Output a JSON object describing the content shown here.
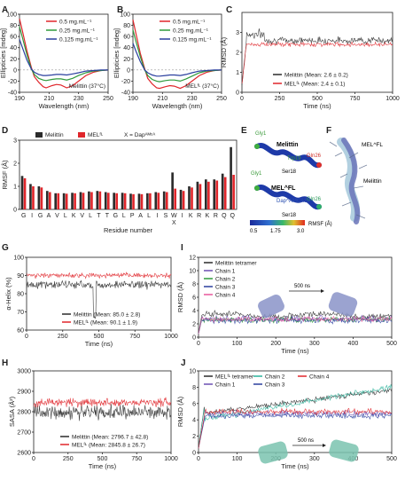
{
  "panels": {
    "A": "A",
    "B": "B",
    "C": "C",
    "D": "D",
    "E": "E",
    "F": "F",
    "G": "G",
    "H": "H",
    "I": "I",
    "J": "J"
  },
  "colors": {
    "black": "#2b2b2b",
    "red": "#e0262b",
    "green": "#2f9a3c",
    "blue": "#2a3f9e",
    "pink": "#e8579b",
    "teal": "#2bb39a",
    "purple": "#6a4fb3",
    "gray": "#8a8a8a"
  },
  "chart_data": [
    {
      "id": "A",
      "type": "line",
      "xlabel": "Wavelength (nm)",
      "ylabel": "Ellipticies [mdeg]",
      "xlim": [
        190,
        250
      ],
      "ylim": [
        -40,
        100
      ],
      "xticks": [
        "190",
        "210",
        "230",
        "250"
      ],
      "yticks": [
        "-40",
        "-20",
        "0",
        "20",
        "40",
        "60",
        "80",
        "100"
      ],
      "annotation": "Melittin (37°C)",
      "series": [
        {
          "name": "0.5 mg.mL⁻¹",
          "color": "#e0262b",
          "x": [
            190,
            192,
            195,
            198,
            200,
            203,
            206,
            208,
            212,
            215,
            218,
            222,
            226,
            230,
            235,
            240,
            245,
            250
          ],
          "y": [
            92,
            70,
            35,
            5,
            -12,
            -22,
            -30,
            -32,
            -28,
            -26,
            -27,
            -32,
            -28,
            -20,
            -10,
            -4,
            -1,
            0
          ]
        },
        {
          "name": "0.25 mg.mL⁻¹",
          "color": "#2f9a3c",
          "x": [
            190,
            192,
            195,
            198,
            200,
            203,
            206,
            208,
            212,
            215,
            218,
            222,
            226,
            230,
            235,
            240,
            245,
            250
          ],
          "y": [
            78,
            58,
            28,
            2,
            -8,
            -15,
            -18,
            -19,
            -17,
            -16,
            -16,
            -18,
            -15,
            -10,
            -5,
            -2,
            -1,
            0
          ]
        },
        {
          "name": "0.125 mg.mL⁻¹",
          "color": "#2a3f9e",
          "x": [
            190,
            192,
            195,
            198,
            200,
            203,
            206,
            208,
            212,
            215,
            218,
            222,
            226,
            230,
            235,
            240,
            245,
            250
          ],
          "y": [
            55,
            40,
            18,
            2,
            -4,
            -8,
            -10,
            -10,
            -9,
            -8,
            -8,
            -9,
            -7,
            -5,
            -2,
            -1,
            0,
            0
          ]
        }
      ]
    },
    {
      "id": "B",
      "type": "line",
      "xlabel": "Wavelength (nm)",
      "ylabel": "Ellipticies [mdeg]",
      "xlim": [
        190,
        250
      ],
      "ylim": [
        -40,
        100
      ],
      "xticks": [
        "190",
        "210",
        "230",
        "250"
      ],
      "yticks": [
        "-40",
        "-20",
        "0",
        "20",
        "40",
        "60",
        "80",
        "100"
      ],
      "annotation": "MEL^FL (37°C)",
      "series": [
        {
          "name": "0.5 mg.mL⁻¹",
          "color": "#e0262b",
          "x": [
            190,
            192,
            195,
            198,
            200,
            203,
            206,
            208,
            212,
            215,
            218,
            222,
            226,
            230,
            235,
            240,
            245,
            250
          ],
          "y": [
            90,
            66,
            30,
            2,
            -15,
            -25,
            -32,
            -33,
            -30,
            -28,
            -29,
            -33,
            -28,
            -20,
            -10,
            -4,
            -1,
            0
          ]
        },
        {
          "name": "0.25 mg.mL⁻¹",
          "color": "#2f9a3c",
          "x": [
            190,
            192,
            195,
            198,
            200,
            203,
            206,
            208,
            212,
            215,
            218,
            222,
            226,
            230,
            235,
            240,
            245,
            250
          ],
          "y": [
            72,
            52,
            24,
            0,
            -10,
            -17,
            -20,
            -21,
            -19,
            -18,
            -18,
            -20,
            -16,
            -11,
            -5,
            -2,
            -1,
            0
          ]
        },
        {
          "name": "0.125 mg.mL⁻¹",
          "color": "#2a3f9e",
          "x": [
            190,
            192,
            195,
            198,
            200,
            203,
            206,
            208,
            212,
            215,
            218,
            222,
            226,
            230,
            235,
            240,
            245,
            250
          ],
          "y": [
            48,
            34,
            15,
            0,
            -5,
            -9,
            -11,
            -11,
            -10,
            -9,
            -9,
            -10,
            -8,
            -5,
            -2,
            -1,
            0,
            0
          ]
        }
      ]
    },
    {
      "id": "C",
      "type": "line",
      "xlabel": "Time (ns)",
      "ylabel": "RMSD (Å)",
      "xlim": [
        0,
        1000
      ],
      "ylim": [
        0,
        4
      ],
      "xticks": [
        "0",
        "250",
        "500",
        "750",
        "1000"
      ],
      "yticks": [
        "0",
        "1",
        "2",
        "3"
      ],
      "series": [
        {
          "name": "Melittin (Mean: 2.6 ± 0.2)",
          "color": "#2b2b2b",
          "mean": 2.6
        },
        {
          "name": "MEL^FL (Mean: 2.4 ± 0.1)",
          "color": "#e0262b",
          "mean": 2.4
        }
      ]
    },
    {
      "id": "D",
      "type": "bar",
      "xlabel": "Residue number",
      "ylabel": "RMSF (Å)",
      "ylim": [
        0,
        3
      ],
      "yticks": [
        "0",
        "1",
        "2",
        "3"
      ],
      "categories": [
        "G",
        "I",
        "G",
        "A",
        "V",
        "L",
        "K",
        "V",
        "L",
        "T",
        "T",
        "G",
        "L",
        "P",
        "A",
        "L",
        "I",
        "S",
        "W",
        "I",
        "K",
        "R",
        "K",
        "R",
        "Q",
        "Q"
      ],
      "marked_index": 18,
      "marked_label": "X",
      "legend_extra": "X = Dap^AMCA",
      "series": [
        {
          "name": "Melittin",
          "color": "#2b2b2b",
          "values": [
            1.45,
            1.1,
            1.0,
            0.8,
            0.7,
            0.7,
            0.72,
            0.75,
            0.78,
            0.8,
            0.75,
            0.72,
            0.72,
            0.68,
            0.68,
            0.7,
            0.75,
            0.78,
            1.6,
            0.85,
            1.0,
            1.2,
            1.3,
            1.3,
            1.55,
            2.7
          ]
        },
        {
          "name": "MEL^FL",
          "color": "#e0262b",
          "values": [
            1.35,
            1.0,
            0.95,
            0.75,
            0.7,
            0.68,
            0.7,
            0.72,
            0.75,
            0.78,
            0.72,
            0.7,
            0.7,
            0.66,
            0.66,
            0.7,
            0.72,
            0.75,
            0.9,
            0.8,
            0.95,
            1.1,
            1.2,
            1.25,
            1.4,
            1.5
          ]
        }
      ]
    },
    {
      "id": "G",
      "type": "line",
      "xlabel": "Time (ns)",
      "ylabel": "α-Helix (%)",
      "xlim": [
        0,
        1000
      ],
      "ylim": [
        60,
        100
      ],
      "xticks": [
        "0",
        "250",
        "500",
        "750",
        "1000"
      ],
      "yticks": [
        "60",
        "70",
        "80",
        "90",
        "100"
      ],
      "series": [
        {
          "name": "Melittin (Mean: 85.0 ± 2.8)",
          "color": "#2b2b2b",
          "mean": 85.0
        },
        {
          "name": "MEL^FL (Mean: 90.1 ± 1.9)",
          "color": "#e0262b",
          "mean": 90.1
        }
      ]
    },
    {
      "id": "H",
      "type": "line",
      "xlabel": "Time (ns)",
      "ylabel": "SASA (Å²)",
      "xlim": [
        0,
        1000
      ],
      "ylim": [
        2600,
        3000
      ],
      "xticks": [
        "0",
        "250",
        "500",
        "750",
        "1000"
      ],
      "yticks": [
        "2600",
        "2700",
        "2800",
        "2900",
        "3000"
      ],
      "series": [
        {
          "name": "Melittin (Mean: 2796.7 ± 42.8)",
          "color": "#2b2b2b",
          "mean": 2796.7
        },
        {
          "name": "MEL^FL (Mean: 2845.8 ± 26.7)",
          "color": "#e0262b",
          "mean": 2845.8
        }
      ]
    },
    {
      "id": "I",
      "type": "line",
      "xlabel": "Time (ns)",
      "ylabel": "RMSD (Å)",
      "xlim": [
        0,
        500
      ],
      "ylim": [
        0,
        12
      ],
      "xticks": [
        "0",
        "100",
        "200",
        "300",
        "400",
        "500"
      ],
      "yticks": [
        "0",
        "2",
        "4",
        "6",
        "8",
        "10",
        "12"
      ],
      "annotation": "500 ns",
      "series": [
        {
          "name": "Melittin tetramer",
          "color": "#2b2b2b",
          "mean": 3.3
        },
        {
          "name": "Chain 1",
          "color": "#6a4fb3",
          "mean": 2.8
        },
        {
          "name": "Chain 2",
          "color": "#2f9a3c",
          "mean": 2.6
        },
        {
          "name": "Chain 3",
          "color": "#2a3f9e",
          "mean": 2.5
        },
        {
          "name": "Chain 4",
          "color": "#e8579b",
          "mean": 2.7
        }
      ]
    },
    {
      "id": "J",
      "type": "line",
      "xlabel": "Time (ns)",
      "ylabel": "RMSD (Å)",
      "xlim": [
        0,
        500
      ],
      "ylim": [
        0,
        10
      ],
      "xticks": [
        "0",
        "100",
        "200",
        "300",
        "400",
        "500"
      ],
      "yticks": [
        "0",
        "2",
        "4",
        "6",
        "8",
        "10"
      ],
      "annotation": "500 ns",
      "series": [
        {
          "name": "MEL^FL tetramer",
          "color": "#2b2b2b",
          "mean": 6.2
        },
        {
          "name": "Chain 1",
          "color": "#6a4fb3",
          "mean": 4.8
        },
        {
          "name": "Chain 2",
          "color": "#2bb39a",
          "mean": 6.0
        },
        {
          "name": "Chain 3",
          "color": "#2a3f9e",
          "mean": 4.5
        },
        {
          "name": "Chain 4",
          "color": "#e0262b",
          "mean": 5.0
        }
      ]
    }
  ],
  "structure_E": {
    "title_top": "Melittin",
    "title_bottom": "MEL^FL",
    "labels_top": [
      "Gly1",
      "Trp19",
      "Ser18",
      "Gln26"
    ],
    "labels_bottom": [
      "Gly1",
      "Dap^AMCA19",
      "Ser18",
      "Gln26"
    ],
    "colorbar_label": "RMSF (Å)",
    "colorbar_ticks": [
      "0.5",
      "1.75",
      "3.0"
    ]
  },
  "structure_F": {
    "label_top": "MEL^FL",
    "label_mid": "Melittin"
  }
}
